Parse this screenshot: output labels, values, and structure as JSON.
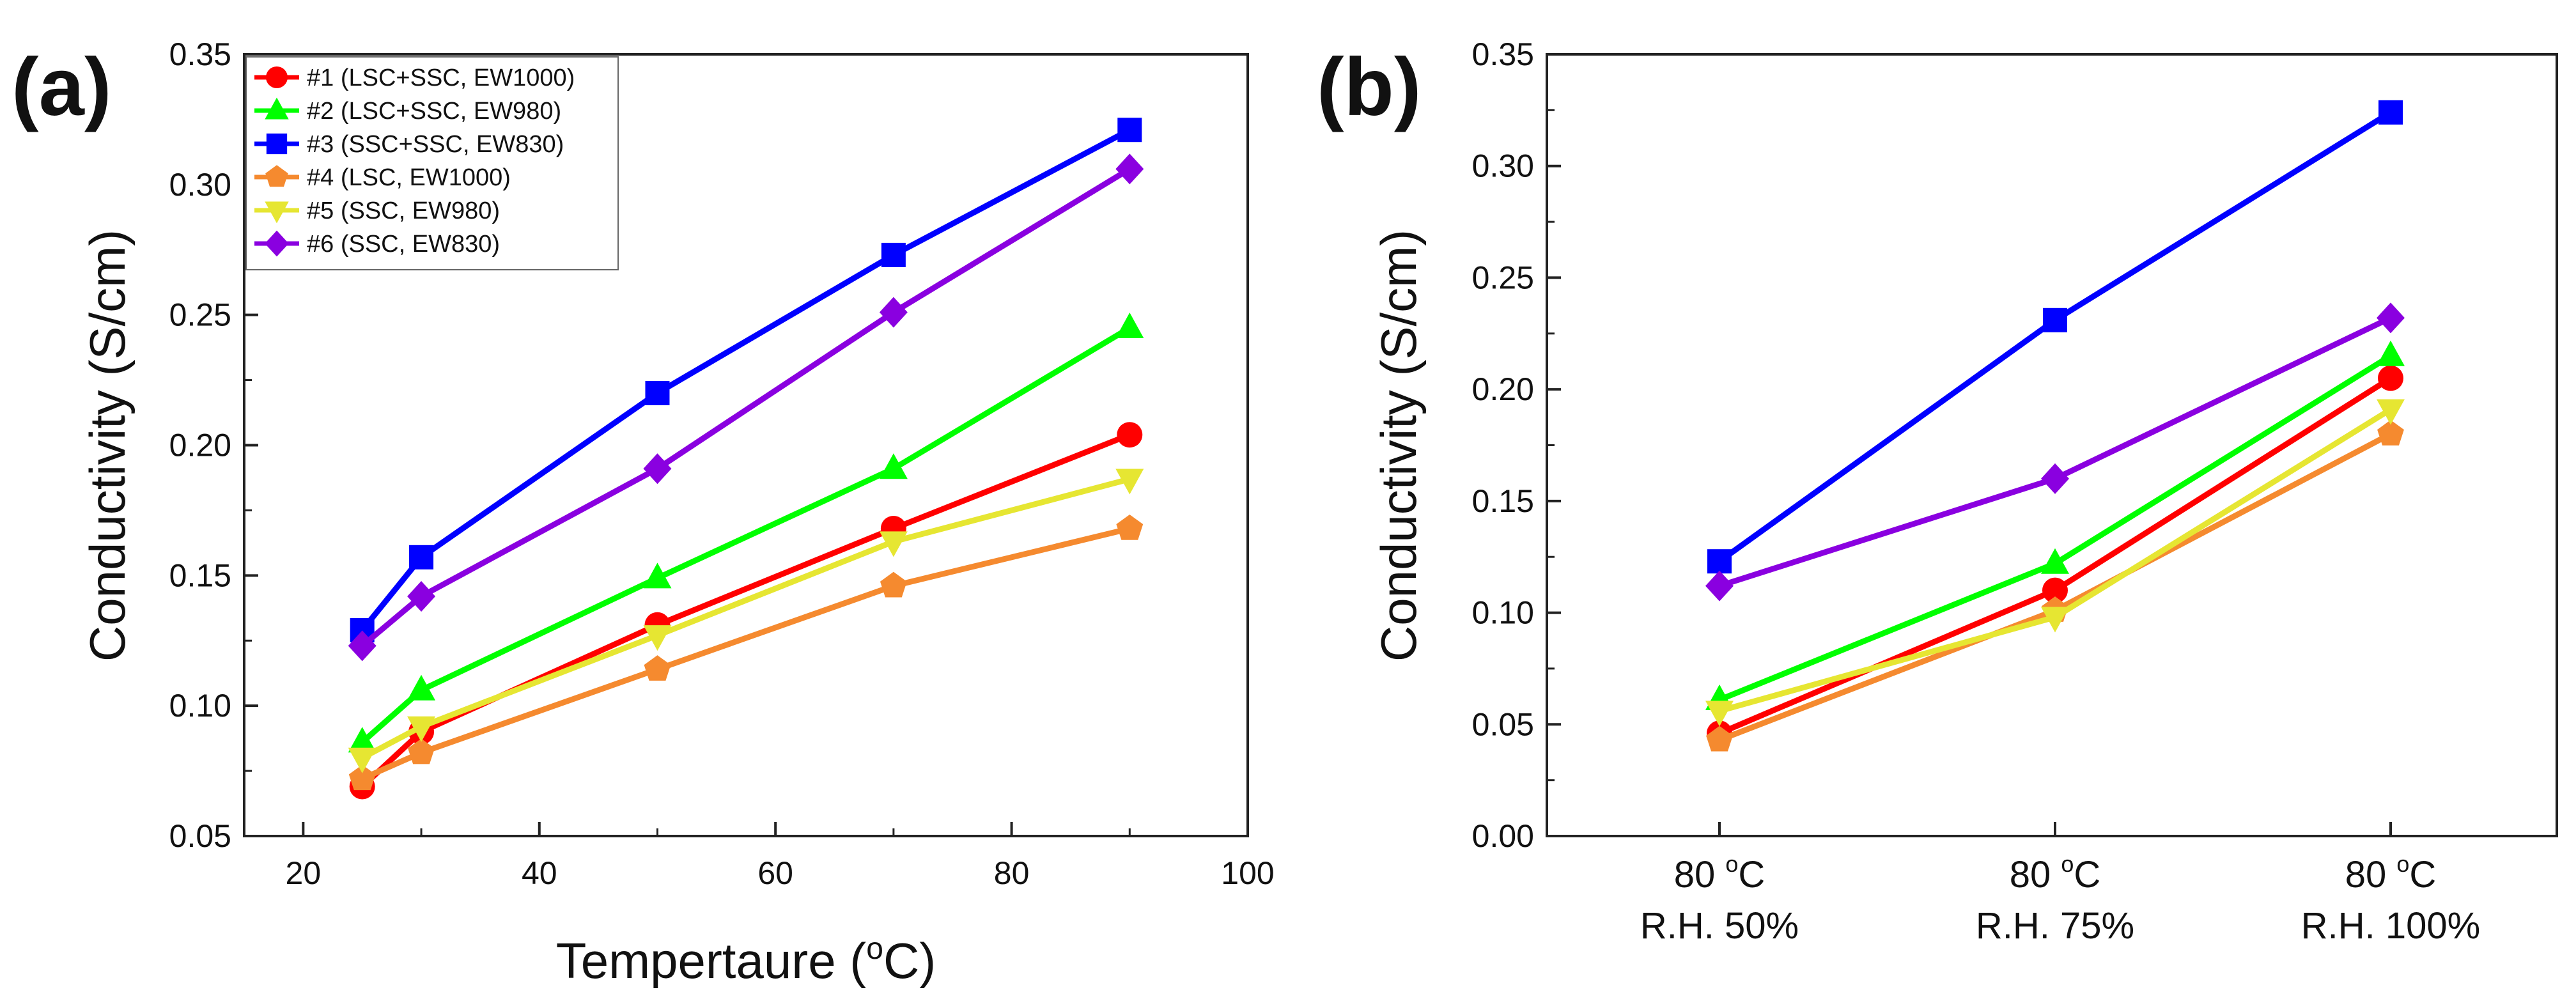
{
  "figure": {
    "panels": [
      {
        "label": "(a)"
      },
      {
        "label": "(b)"
      }
    ]
  },
  "chart_data": [
    {
      "type": "line",
      "panel": "(a)",
      "xlabel": "Tempertaure (",
      "xlabel_sup": "o",
      "xlabel_tail": "C)",
      "ylabel": "Conductivity (S/cm)",
      "xlim": [
        15,
        100
      ],
      "ylim": [
        0.05,
        0.35
      ],
      "xticks": [
        20,
        40,
        60,
        80,
        100
      ],
      "xtick_labels": [
        "20",
        "40",
        "60",
        "80",
        "100"
      ],
      "yticks": [
        0.05,
        0.1,
        0.15,
        0.2,
        0.25,
        0.3,
        0.35
      ],
      "ytick_labels": [
        "0.05",
        "0.10",
        "0.15",
        "0.20",
        "0.25",
        "0.30",
        "0.35"
      ],
      "grid": false,
      "legend_position": "top-left",
      "x": [
        25,
        30,
        50,
        70,
        90
      ],
      "series": [
        {
          "name": "#1 (LSC+SSC, EW1000)",
          "color": "#ff0000",
          "marker": "circle",
          "values": [
            0.069,
            0.09,
            0.131,
            0.168,
            0.204
          ]
        },
        {
          "name": "#2 (LSC+SSC, EW980)",
          "color": "#00ff00",
          "marker": "triangle-up",
          "values": [
            0.086,
            0.106,
            0.149,
            0.191,
            0.245
          ]
        },
        {
          "name": "#3 (SSC+SSC, EW830)",
          "color": "#0000ff",
          "marker": "square",
          "values": [
            0.129,
            0.157,
            0.22,
            0.273,
            0.321
          ]
        },
        {
          "name": "#4 (LSC, EW1000)",
          "color": "#f58a2f",
          "marker": "pentagon",
          "values": [
            0.072,
            0.082,
            0.114,
            0.146,
            0.168
          ]
        },
        {
          "name": "#5 (SSC, EW980)",
          "color": "#e6e632",
          "marker": "triangle-down",
          "values": [
            0.08,
            0.092,
            0.127,
            0.163,
            0.187
          ]
        },
        {
          "name": "#6 (SSC, EW830)",
          "color": "#8a00e0",
          "marker": "diamond",
          "values": [
            0.123,
            0.142,
            0.191,
            0.251,
            0.306
          ]
        }
      ]
    },
    {
      "type": "line",
      "panel": "(b)",
      "ylabel": "Conductivity (S/cm)",
      "ylim": [
        0.0,
        0.35
      ],
      "yticks": [
        0.0,
        0.05,
        0.1,
        0.15,
        0.2,
        0.25,
        0.3,
        0.35
      ],
      "ytick_labels": [
        "0.00",
        "0.05",
        "0.10",
        "0.15",
        "0.20",
        "0.25",
        "0.30",
        "0.35"
      ],
      "grid": false,
      "categories": [
        {
          "line1": "80 ",
          "sup": "o",
          "tail": "C",
          "line2": "R.H. 50%"
        },
        {
          "line1": "80 ",
          "sup": "o",
          "tail": "C",
          "line2": "R.H. 75%"
        },
        {
          "line1": "80 ",
          "sup": "o",
          "tail": "C",
          "line2": "R.H. 100%"
        }
      ],
      "series": [
        {
          "name": "#1 (LSC+SSC, EW1000)",
          "color": "#ff0000",
          "marker": "circle",
          "values": [
            0.046,
            0.11,
            0.205
          ]
        },
        {
          "name": "#2 (LSC+SSC, EW980)",
          "color": "#00ff00",
          "marker": "triangle-up",
          "values": [
            0.061,
            0.122,
            0.215
          ]
        },
        {
          "name": "#3 (SSC+SSC, EW830)",
          "color": "#0000ff",
          "marker": "square",
          "values": [
            0.123,
            0.231,
            0.324
          ]
        },
        {
          "name": "#4 (LSC, EW1000)",
          "color": "#f58a2f",
          "marker": "pentagon",
          "values": [
            0.043,
            0.101,
            0.18
          ]
        },
        {
          "name": "#5 (SSC, EW980)",
          "color": "#e6e632",
          "marker": "triangle-down",
          "values": [
            0.056,
            0.098,
            0.191
          ]
        },
        {
          "name": "#6 (SSC, EW830)",
          "color": "#8a00e0",
          "marker": "diamond",
          "values": [
            0.112,
            0.16,
            0.232
          ]
        }
      ]
    }
  ]
}
